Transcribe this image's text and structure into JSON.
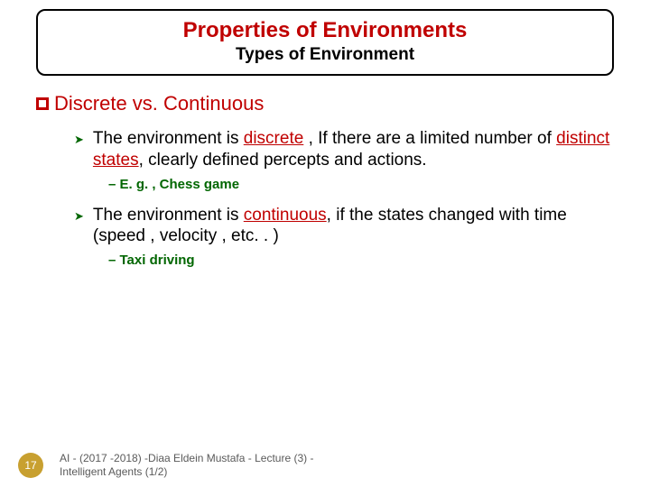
{
  "titleBox": {
    "main": "Properties of Environments",
    "sub": "Types of Environment"
  },
  "section": {
    "heading": "Discrete  vs. Continuous",
    "items": [
      {
        "pre": "The environment is ",
        "key": "discrete",
        "mid": " , If there are a limited number of ",
        "key2": "distinct states",
        "post": ", clearly defined percepts and actions.",
        "example": "– E. g. , Chess game"
      },
      {
        "pre": "The environment is ",
        "key": "continuous",
        "mid": ", if the states changed  with time (speed , velocity , etc. . )",
        "key2": "",
        "post": "",
        "example": "– Taxi driving"
      }
    ]
  },
  "footer": {
    "page": "17",
    "text": "AI - (2017 -2018) -Diaa Eldein Mustafa - Lecture (3) - Intelligent Agents (1/2)"
  },
  "colors": {
    "accent": "#c00000",
    "green": "#006600",
    "badge": "#c8a030"
  }
}
